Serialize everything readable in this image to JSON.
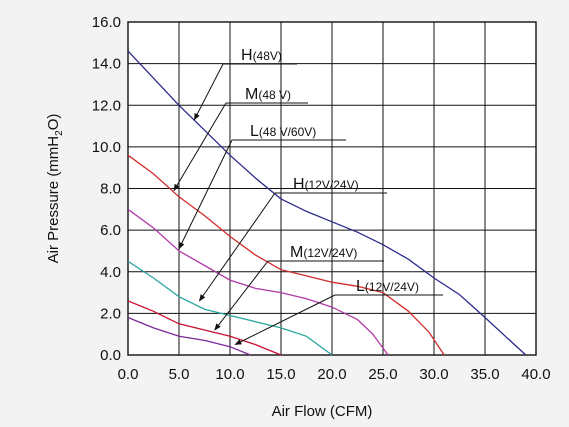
{
  "chart_data": {
    "type": "line",
    "title": "",
    "xlabel": "Air Flow (CFM)",
    "ylabel_parts": {
      "base": "Air Pressure (mmH",
      "sub": "2",
      "tail": "O)"
    },
    "xlim": [
      0,
      40
    ],
    "ylim": [
      0,
      16
    ],
    "grid": true,
    "legend": "none",
    "x_ticks": [
      "0.0",
      "5.0",
      "10.0",
      "15.0",
      "20.0",
      "25.0",
      "30.0",
      "35.0",
      "40.0"
    ],
    "y_ticks": [
      "0.0",
      "2.0",
      "4.0",
      "6.0",
      "8.0",
      "10.0",
      "12.0",
      "14.0",
      "16.0"
    ],
    "series": [
      {
        "color": "#2b2b8c",
        "points": [
          [
            0,
            14.6
          ],
          [
            2.5,
            13.3
          ],
          [
            5,
            12.0
          ],
          [
            7.5,
            10.8
          ],
          [
            10,
            9.6
          ],
          [
            12.5,
            8.5
          ],
          [
            15,
            7.5
          ],
          [
            17.5,
            6.9
          ],
          [
            20,
            6.4
          ],
          [
            22.5,
            5.9
          ],
          [
            25,
            5.3
          ],
          [
            27.5,
            4.6
          ],
          [
            30,
            3.7
          ],
          [
            32.5,
            2.9
          ],
          [
            35,
            1.8
          ],
          [
            37,
            0.9
          ],
          [
            39,
            0
          ]
        ]
      },
      {
        "color": "#d22b2b",
        "points": [
          [
            0,
            9.6
          ],
          [
            2.5,
            8.7
          ],
          [
            5,
            7.6
          ],
          [
            7.5,
            6.7
          ],
          [
            10,
            5.7
          ],
          [
            12.5,
            4.8
          ],
          [
            15,
            4.1
          ],
          [
            17.5,
            3.8
          ],
          [
            20,
            3.5
          ],
          [
            22.5,
            3.3
          ],
          [
            25,
            3.0
          ],
          [
            27.5,
            2.1
          ],
          [
            29.5,
            1.1
          ],
          [
            31,
            0
          ]
        ]
      },
      {
        "color": "#b03aa8",
        "points": [
          [
            0,
            7.0
          ],
          [
            2.5,
            6.1
          ],
          [
            5,
            5.0
          ],
          [
            7.5,
            4.3
          ],
          [
            10,
            3.6
          ],
          [
            12.5,
            3.2
          ],
          [
            15,
            3.0
          ],
          [
            17.5,
            2.7
          ],
          [
            20,
            2.3
          ],
          [
            22.5,
            1.7
          ],
          [
            24,
            1.0
          ],
          [
            25.5,
            0
          ]
        ]
      },
      {
        "color": "#2aa6a0",
        "points": [
          [
            0,
            4.5
          ],
          [
            2.5,
            3.7
          ],
          [
            5,
            2.8
          ],
          [
            7.5,
            2.2
          ],
          [
            10,
            1.9
          ],
          [
            12.5,
            1.6
          ],
          [
            15,
            1.3
          ],
          [
            17.5,
            0.9
          ],
          [
            20,
            0
          ]
        ]
      },
      {
        "color": "#c8102e",
        "points": [
          [
            0,
            2.6
          ],
          [
            2.5,
            2.1
          ],
          [
            5,
            1.5
          ],
          [
            7.5,
            1.2
          ],
          [
            10,
            0.9
          ],
          [
            12.5,
            0.5
          ],
          [
            15,
            0
          ]
        ]
      },
      {
        "color": "#7a2a9a",
        "points": [
          [
            0,
            1.8
          ],
          [
            2.5,
            1.3
          ],
          [
            5,
            0.9
          ],
          [
            7.5,
            0.7
          ],
          [
            10,
            0.4
          ],
          [
            12,
            0
          ]
        ]
      }
    ],
    "annotations": [
      {
        "main": "H",
        "sub": "(48V)",
        "target": [
          6.5,
          11.3
        ]
      },
      {
        "main": "M",
        "sub": "(48 V)",
        "target": [
          4.5,
          7.9
        ]
      },
      {
        "main": "L",
        "sub": "(48 V/60V)",
        "target": [
          5.0,
          5.1
        ]
      },
      {
        "main": "H",
        "sub": "(12V/24V)",
        "target": [
          7.0,
          2.6
        ]
      },
      {
        "main": "M",
        "sub": "(12V/24V)",
        "target": [
          8.5,
          1.2
        ]
      },
      {
        "main": "L",
        "sub": "(12V/24V)",
        "target": [
          10.5,
          0.5
        ]
      }
    ]
  }
}
